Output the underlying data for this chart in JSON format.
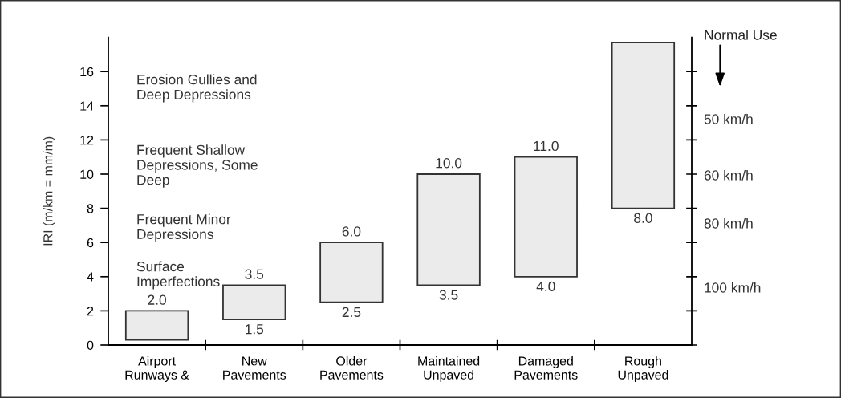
{
  "chart_data": {
    "type": "bar",
    "categories": [
      "Airport\nRunways &",
      "New\nPavements",
      "Older\nPavements",
      "Maintained\nUnpaved",
      "Damaged\nPavements",
      "Rough\nUnpaved"
    ],
    "values": [
      1.7,
      2.0,
      3.5,
      6.5,
      7.0,
      9.7
    ],
    "base": [
      0.3,
      1.5,
      2.5,
      3.5,
      4.0,
      8.0
    ],
    "color": "#ebebeb",
    "ylabel": "IRI (m/km = mm/m)",
    "ylim": [
      0,
      18
    ],
    "yticks": [
      0,
      2,
      4,
      6,
      8,
      10,
      12,
      14,
      16
    ],
    "annotations": [
      "Erosion Gullies and\nDeep Depressions",
      "Frequent Shallow\nDepressions, Some\nDeep",
      "Frequent Minor\nDepressions",
      "Surface\nImperfections",
      "Normal Use",
      "50 km/h",
      "60 km/h",
      "80 km/h",
      "100 km/h",
      {
        "text": "2.0",
        "x": "Airport\nRunways &",
        "y": 2.0
      },
      {
        "text": "3.5",
        "x": "New\nPavements",
        "y": 3.5
      },
      {
        "text": "1.5",
        "x": "New\nPavements",
        "y": 1.5
      },
      {
        "text": "6.0",
        "x": "Older\nPavements",
        "y": 6.0
      },
      {
        "text": "2.5",
        "x": "Older\nPavements",
        "y": 2.5
      },
      {
        "text": "10.0",
        "x": "Maintained\nUnpaved",
        "y": 10.0
      },
      {
        "text": "3.5",
        "x": "Maintained\nUnpaved",
        "y": 3.5
      },
      {
        "text": "11.0",
        "x": "Damaged\nPavements",
        "y": 11.0
      },
      {
        "text": "4.0",
        "x": "Damaged\nPavements",
        "y": 4.0
      },
      {
        "text": "8.0",
        "x": "Rough\nUnpaved",
        "y": 8.0
      }
    ]
  }
}
